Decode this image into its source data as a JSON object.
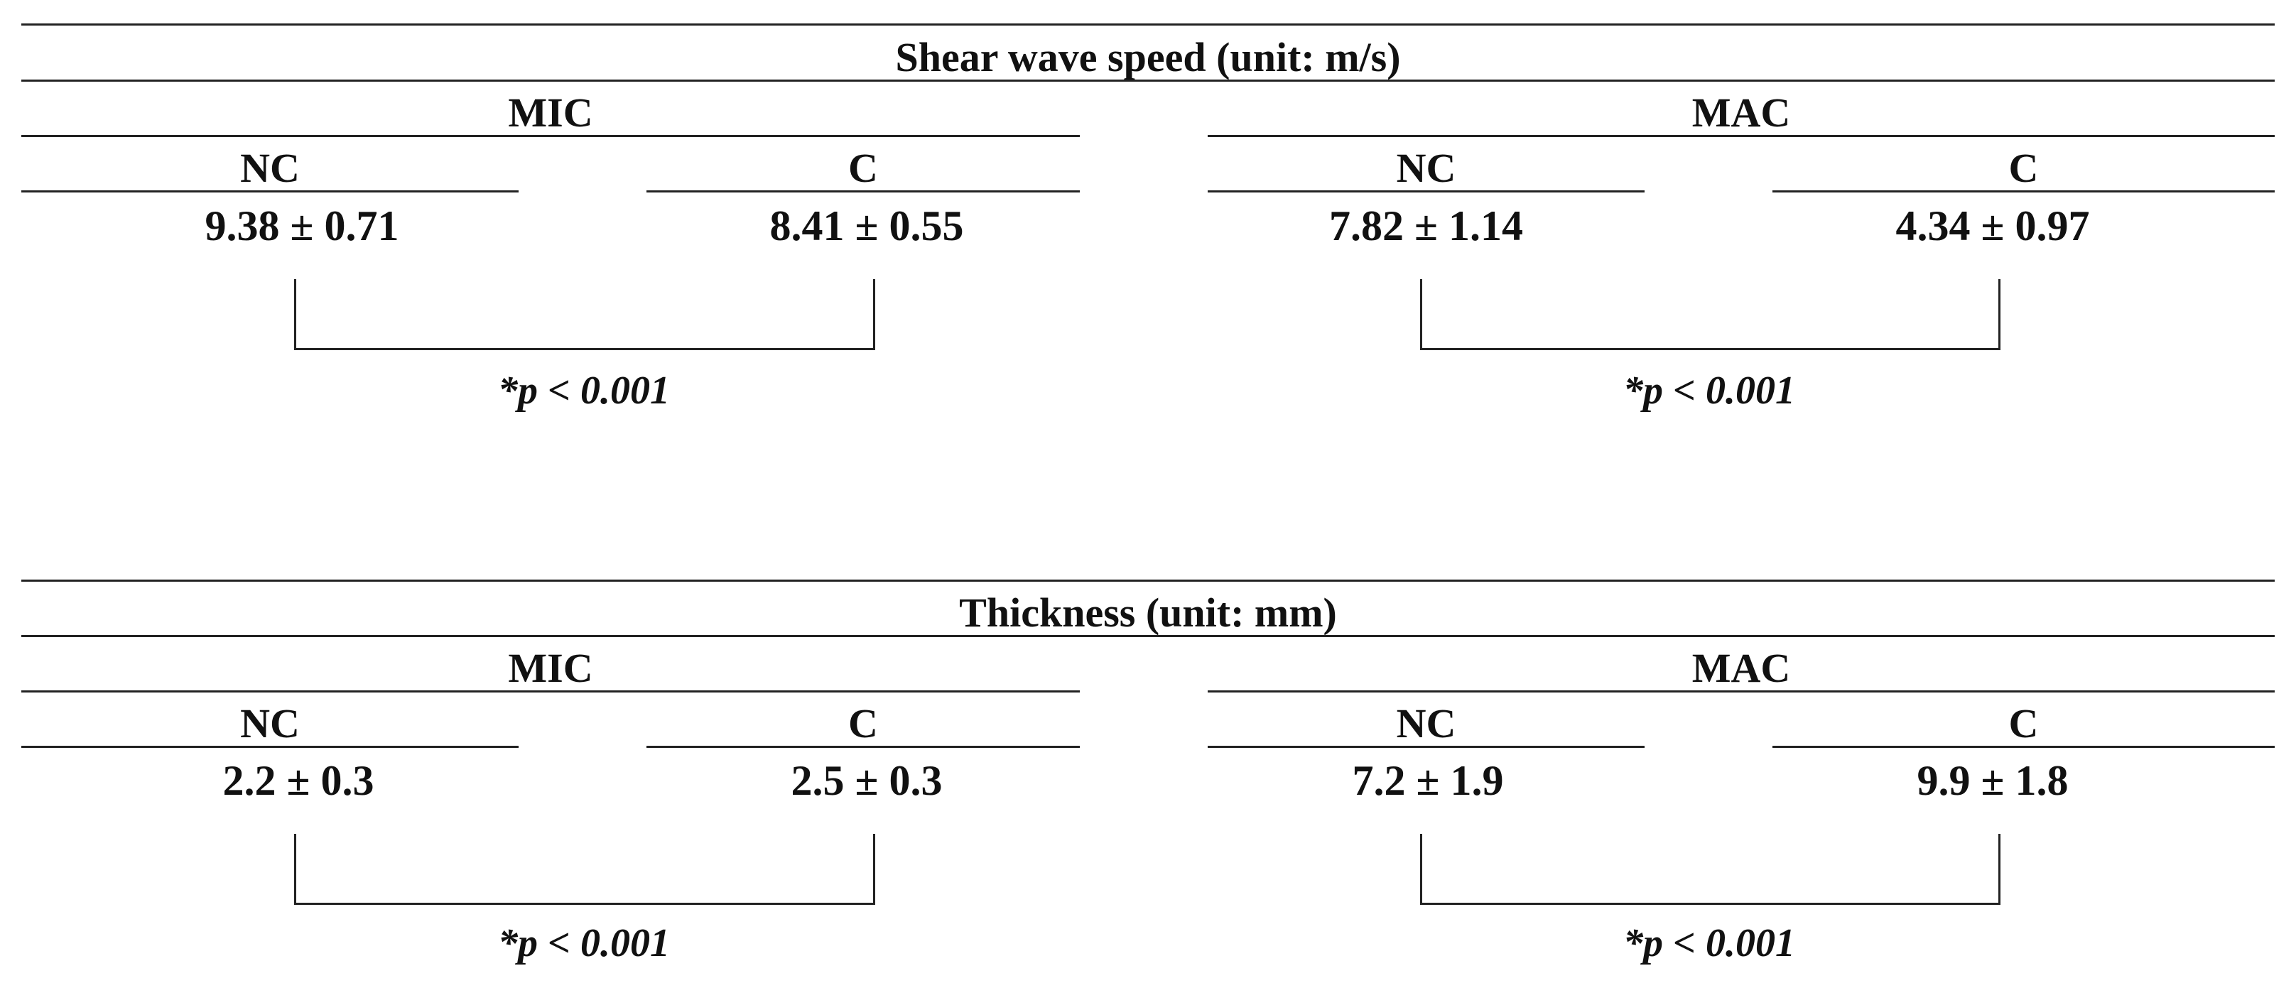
{
  "panels": [
    {
      "title": "Shear wave speed (unit: m/s)",
      "groups": [
        {
          "label": "MIC",
          "subgroups": [
            {
              "label": "NC",
              "value": "9.38 ± 0.71"
            },
            {
              "label": "C",
              "value": "8.41 ± 0.55"
            }
          ],
          "p_value": "*p < 0.001"
        },
        {
          "label": "MAC",
          "subgroups": [
            {
              "label": "NC",
              "value": "7.82 ± 1.14"
            },
            {
              "label": "C",
              "value": "4.34 ± 0.97"
            }
          ],
          "p_value": "*p < 0.001"
        }
      ]
    },
    {
      "title": "Thickness (unit: mm)",
      "groups": [
        {
          "label": "MIC",
          "subgroups": [
            {
              "label": "NC",
              "value": "2.2 ± 0.3"
            },
            {
              "label": "C",
              "value": "2.5 ± 0.3"
            }
          ],
          "p_value": "*p < 0.001"
        },
        {
          "label": "MAC",
          "subgroups": [
            {
              "label": "NC",
              "value": "7.2 ± 1.9"
            },
            {
              "label": "C",
              "value": "9.9 ± 1.8"
            }
          ],
          "p_value": "*p < 0.001"
        }
      ]
    }
  ]
}
